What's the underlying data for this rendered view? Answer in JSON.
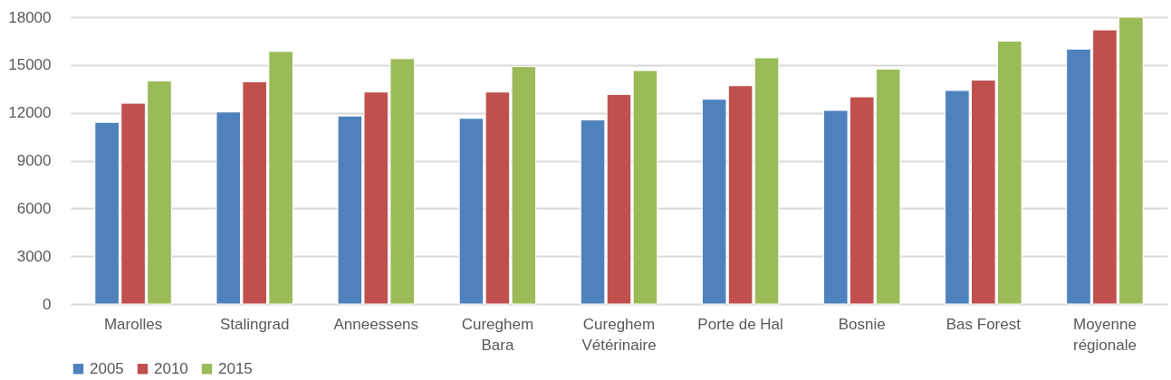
{
  "chart_data": {
    "type": "bar",
    "categories": [
      "Marolles",
      "Stalingrad",
      "Anneessens",
      "Cureghem Bara",
      "Cureghem Vétérinaire",
      "Porte de Hal",
      "Bosnie",
      "Bas Forest",
      "Moyenne régionale"
    ],
    "series": [
      {
        "name": "2005",
        "color": "#4f81bd",
        "values": [
          11400,
          12050,
          11800,
          11650,
          11550,
          12850,
          12150,
          13400,
          16000
        ]
      },
      {
        "name": "2010",
        "color": "#c0504d",
        "values": [
          12600,
          13950,
          13300,
          13300,
          13150,
          13700,
          13000,
          14050,
          17200
        ]
      },
      {
        "name": "2015",
        "color": "#9bbb59",
        "values": [
          14000,
          15850,
          15400,
          14900,
          14650,
          15450,
          14750,
          16500,
          18000
        ]
      }
    ],
    "ylim": [
      0,
      18000
    ],
    "yticks": [
      0,
      3000,
      6000,
      9000,
      12000,
      15000,
      18000
    ],
    "grid": "y",
    "legend": "bottom left"
  }
}
